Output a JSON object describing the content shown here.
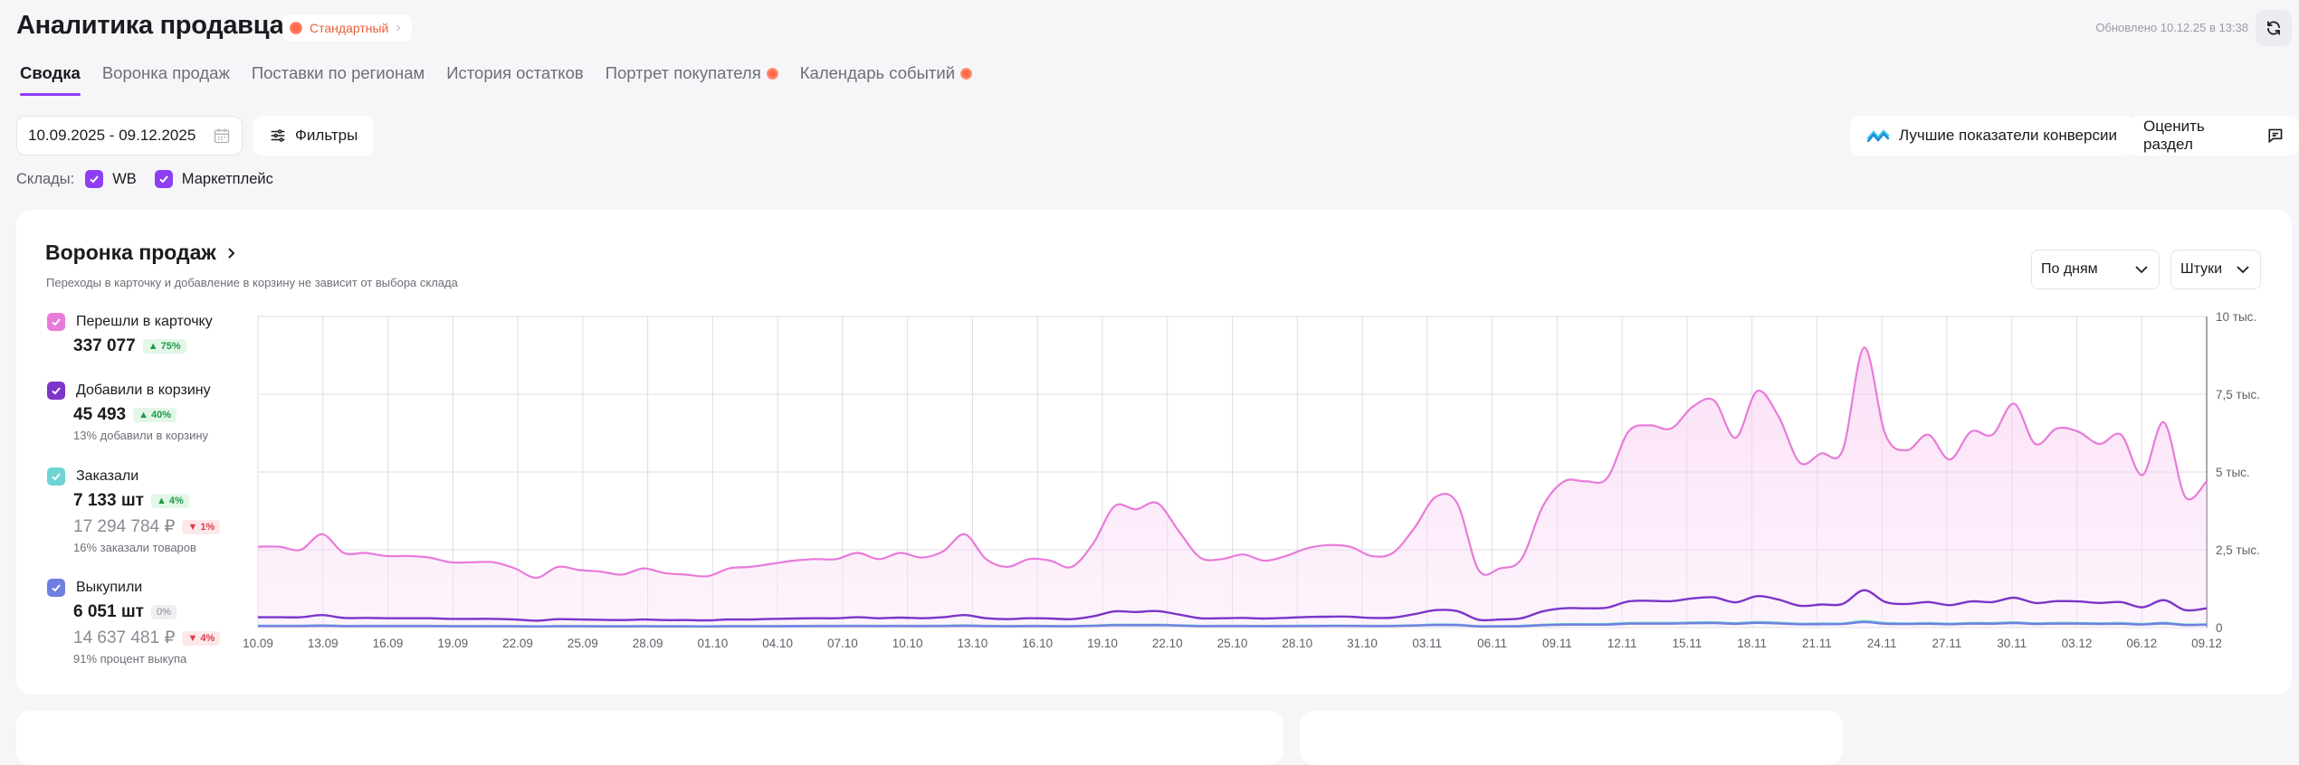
{
  "header": {
    "title": "Аналитика продавца",
    "plan_label": "Стандартный",
    "updated": "Обновлено 10.12.25 в 13:38"
  },
  "tabs": [
    {
      "label": "Сводка",
      "active": true,
      "dot": false
    },
    {
      "label": "Воронка продаж",
      "active": false,
      "dot": false
    },
    {
      "label": "Поставки по регионам",
      "active": false,
      "dot": false
    },
    {
      "label": "История остатков",
      "active": false,
      "dot": false
    },
    {
      "label": "Портрет покупателя",
      "active": false,
      "dot": true
    },
    {
      "label": "Календарь событий",
      "active": false,
      "dot": true
    }
  ],
  "toolbar": {
    "date_range": "10.09.2025 - 09.12.2025",
    "filters_label": "Фильтры",
    "best_label": "Лучшие показатели конверсии",
    "rate_label": "Оценить раздел"
  },
  "warehouses": {
    "label": "Склады:",
    "items": [
      "WB",
      "Маркетплейс"
    ]
  },
  "funnel": {
    "title": "Воронка продаж",
    "subtitle": "Переходы в карточку и добавление в корзину не зависит от выбора склада",
    "period_select": "По дням",
    "unit_select": "Штуки",
    "metrics": [
      {
        "label": "Перешли в карточку",
        "color": "#e87bd9",
        "value": "337 077",
        "change": "75%",
        "change_dir": "up"
      },
      {
        "label": "Добавили в корзину",
        "color": "#7b35c9",
        "value": "45 493",
        "change": "40%",
        "change_dir": "up",
        "note": "13% добавили в корзину"
      },
      {
        "label": "Заказали",
        "color": "#6ed3d3",
        "value": "7 133 шт",
        "change": "4%",
        "change_dir": "up",
        "value2": "17 294 784 ₽",
        "change2": "1%",
        "change2_dir": "down",
        "note": "16% заказали товаров"
      },
      {
        "label": "Выкупили",
        "color": "#6f7fe0",
        "value": "6 051 шт",
        "change": "0%",
        "change_dir": "zero",
        "value2": "14 637 481 ₽",
        "change2": "4%",
        "change2_dir": "down",
        "note": "91% процент выкупа"
      }
    ]
  },
  "chart_data": {
    "type": "line",
    "x_tick_labels": [
      "10.09",
      "13.09",
      "16.09",
      "19.09",
      "22.09",
      "25.09",
      "28.09",
      "01.10",
      "04.10",
      "07.10",
      "10.10",
      "13.10",
      "16.10",
      "19.10",
      "22.10",
      "25.10",
      "28.10",
      "31.10",
      "03.11",
      "06.11",
      "09.11",
      "12.11",
      "15.11",
      "18.11",
      "21.11",
      "24.11",
      "27.11",
      "30.11",
      "03.12",
      "06.12",
      "09.12"
    ],
    "y_tick_labels": [
      "0",
      "2,5 тыс.",
      "5 тыс.",
      "7,5 тыс.",
      "10 тыс."
    ],
    "ylim": [
      0,
      10000
    ],
    "grid": true,
    "series": [
      {
        "name": "Перешли в карточку",
        "color": "#e87bd9",
        "fill": true,
        "values": [
          2600,
          2600,
          2500,
          3000,
          2400,
          2400,
          2300,
          2300,
          2250,
          2100,
          2100,
          2100,
          1900,
          1600,
          1950,
          1850,
          1800,
          1700,
          1900,
          1750,
          1700,
          1650,
          1900,
          1950,
          2050,
          2150,
          2200,
          2200,
          2400,
          2200,
          2400,
          2250,
          2450,
          3000,
          2200,
          1950,
          2200,
          2150,
          1950,
          2700,
          3900,
          3800,
          4000,
          3100,
          2250,
          2200,
          2350,
          2150,
          2300,
          2550,
          2650,
          2600,
          2300,
          2400,
          3200,
          4200,
          4000,
          1850,
          1900,
          2200,
          3900,
          4700,
          4700,
          4800,
          6300,
          6500,
          6400,
          7100,
          7300,
          6100,
          7600,
          6800,
          5300,
          5600,
          5700,
          9000,
          6200,
          5700,
          6200,
          5400,
          6300,
          6200,
          7200,
          5900,
          6400,
          6300,
          5900,
          6200,
          4900,
          6600,
          4200,
          4700
        ]
      },
      {
        "name": "Добавили в корзину",
        "color": "#7b35c9",
        "fill": false,
        "values": [
          330,
          330,
          330,
          400,
          310,
          310,
          300,
          300,
          300,
          280,
          280,
          280,
          260,
          220,
          270,
          260,
          250,
          240,
          260,
          240,
          240,
          230,
          260,
          260,
          280,
          290,
          300,
          300,
          330,
          300,
          320,
          300,
          330,
          400,
          300,
          270,
          300,
          290,
          270,
          360,
          520,
          500,
          530,
          420,
          300,
          300,
          310,
          290,
          310,
          340,
          350,
          350,
          310,
          320,
          430,
          560,
          530,
          250,
          260,
          300,
          520,
          620,
          620,
          640,
          840,
          860,
          850,
          940,
          970,
          810,
          1010,
          900,
          700,
          740,
          760,
          1200,
          820,
          760,
          820,
          720,
          840,
          820,
          960,
          790,
          850,
          840,
          790,
          820,
          650,
          880,
          560,
          620
        ]
      },
      {
        "name": "Заказали",
        "color": "#6ed3d3",
        "fill": false,
        "values": [
          60,
          60,
          60,
          70,
          55,
          55,
          55,
          55,
          55,
          50,
          50,
          50,
          48,
          40,
          50,
          48,
          45,
          44,
          48,
          44,
          44,
          42,
          48,
          48,
          50,
          52,
          55,
          55,
          60,
          55,
          58,
          55,
          60,
          70,
          55,
          50,
          55,
          52,
          50,
          65,
          90,
          88,
          92,
          75,
          55,
          55,
          56,
          52,
          56,
          60,
          62,
          62,
          56,
          58,
          76,
          98,
          94,
          45,
          46,
          54,
          92,
          110,
          110,
          112,
          148,
          150,
          150,
          165,
          170,
          142,
          178,
          158,
          124,
          130,
          134,
          210,
          145,
          134,
          145,
          126,
          148,
          145,
          168,
          138,
          150,
          148,
          138,
          145,
          115,
          155,
          98,
          109
        ]
      },
      {
        "name": "Выкупили",
        "color": "#6f7fe0",
        "fill": false,
        "values": [
          50,
          50,
          50,
          58,
          46,
          46,
          46,
          46,
          46,
          42,
          42,
          42,
          40,
          34,
          42,
          40,
          38,
          37,
          40,
          37,
          37,
          35,
          40,
          40,
          42,
          44,
          46,
          46,
          50,
          46,
          48,
          46,
          50,
          58,
          46,
          42,
          46,
          44,
          42,
          55,
          76,
          74,
          78,
          63,
          46,
          46,
          47,
          44,
          47,
          50,
          52,
          52,
          47,
          49,
          64,
          82,
          79,
          38,
          39,
          45,
          77,
          92,
          92,
          94,
          124,
          126,
          126,
          139,
          143,
          119,
          150,
          133,
          104,
          109,
          113,
          176,
          122,
          113,
          122,
          106,
          124,
          122,
          141,
          116,
          126,
          124,
          116,
          122,
          97,
          130,
          82,
          92
        ]
      }
    ]
  },
  "icons": {
    "refresh": "refresh-icon",
    "calendar": "calendar-icon",
    "filters": "sliders-icon",
    "best": "chart-wave-icon",
    "rate": "comment-icon",
    "checkbox": "check-icon",
    "chevron": "chevron-right-icon",
    "dropdown": "chevron-down-icon"
  }
}
